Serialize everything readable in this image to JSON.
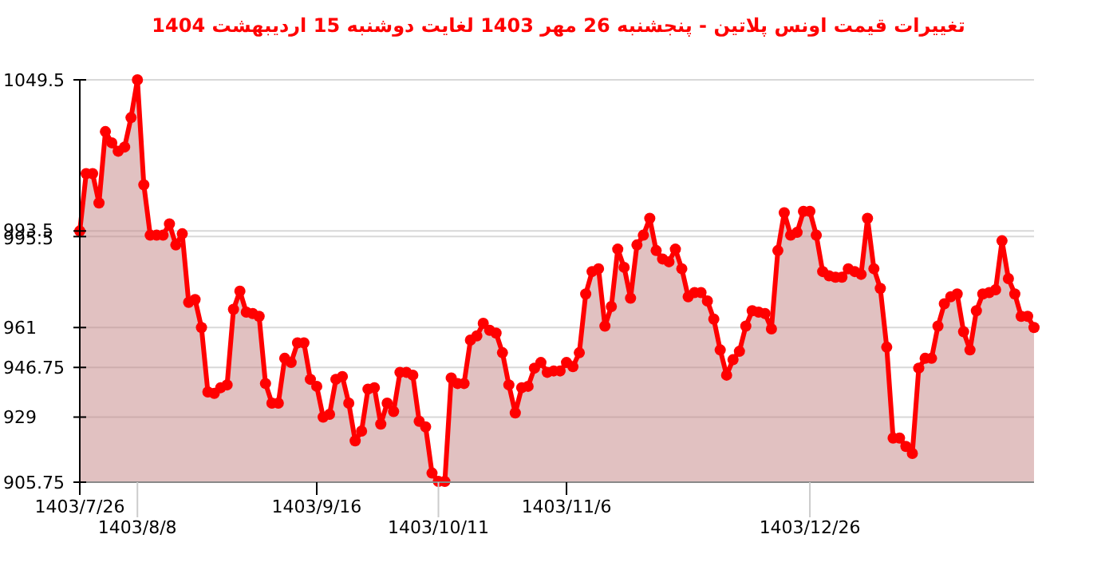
{
  "chart_data": {
    "type": "area",
    "title": "تغییرات قیمت اونس پلاتین - پنجشنبه  26 مهر 1403 لغایت  دوشنبه  15 اردیبهشت 1404",
    "categories": [
      "1403/7/26",
      null,
      null,
      null,
      null,
      null,
      null,
      null,
      null,
      "1403/8/8",
      null,
      null,
      null,
      null,
      null,
      null,
      null,
      null,
      null,
      null,
      null,
      null,
      null,
      null,
      null,
      null,
      null,
      null,
      null,
      null,
      null,
      null,
      null,
      null,
      null,
      null,
      null,
      "1403/9/16",
      null,
      null,
      null,
      null,
      null,
      null,
      null,
      null,
      null,
      null,
      null,
      null,
      null,
      null,
      null,
      null,
      null,
      null,
      "1403/10/11",
      null,
      null,
      null,
      null,
      null,
      null,
      null,
      null,
      null,
      null,
      null,
      null,
      null,
      null,
      null,
      null,
      null,
      null,
      null,
      "1403/11/6",
      null,
      null,
      null,
      null,
      null,
      null,
      null,
      null,
      null,
      null,
      null,
      null,
      null,
      null,
      null,
      null,
      null,
      null,
      null,
      null,
      null,
      null,
      null,
      null,
      null,
      null,
      null,
      null,
      null,
      null,
      null,
      null,
      null,
      null,
      null,
      null,
      null,
      "1403/12/26",
      null,
      null,
      null,
      null,
      null,
      null,
      null,
      null,
      null,
      null,
      null,
      null,
      null,
      null,
      null,
      null,
      null,
      null,
      null,
      null,
      null,
      null,
      null,
      null,
      null,
      null,
      null,
      null,
      null,
      null,
      null,
      null,
      null,
      null,
      null
    ],
    "series": [
      {
        "color": "#ff0000",
        "values": [
          995.5,
          1016,
          1016,
          1005.5,
          1031,
          1027,
          1024,
          1025.5,
          1036,
          1049.5,
          1012,
          994,
          994,
          994,
          998,
          990.5,
          994.5,
          970,
          971,
          961,
          938,
          937.5,
          939.5,
          940.5,
          967.5,
          974,
          966.5,
          966,
          965,
          941,
          934,
          934,
          950,
          948.5,
          955.5,
          955.5,
          942.5,
          940,
          929,
          930,
          942.5,
          943.5,
          934,
          920.5,
          924,
          939,
          939.5,
          926.5,
          934,
          931,
          945,
          945,
          944,
          927.5,
          925.5,
          909,
          906,
          906,
          943,
          941,
          941,
          956.5,
          958,
          962.5,
          960,
          959,
          952,
          940.5,
          930.5,
          939.5,
          940,
          946.5,
          948.5,
          945,
          945.5,
          945.5,
          948.5,
          947,
          952,
          973,
          981,
          982,
          961.5,
          968.5,
          989,
          982.5,
          971.5,
          990.5,
          994,
          1000,
          988.5,
          985.5,
          984.5,
          989,
          982,
          972,
          973.5,
          973.5,
          970.5,
          964,
          953,
          944,
          949.5,
          952.5,
          961.5,
          967,
          966.5,
          966,
          960.5,
          988.5,
          1002,
          994,
          995,
          1002.5,
          1002.5,
          994,
          981,
          979.5,
          979,
          979,
          982,
          981,
          980,
          1000,
          982,
          975,
          954,
          921.5,
          921.5,
          918.5,
          916,
          946.5,
          950,
          950,
          961.5,
          969.5,
          972,
          973,
          959.5,
          953,
          967,
          973,
          973.5,
          974.5,
          992,
          978.5,
          973,
          965,
          965,
          961
        ]
      }
    ],
    "ylim": [
      905.75,
      1049.5
    ],
    "yticks": [
      905.75,
      929,
      946.75,
      961,
      993.5,
      995.5,
      1049.5
    ],
    "grid": "y",
    "marker": "circle"
  }
}
